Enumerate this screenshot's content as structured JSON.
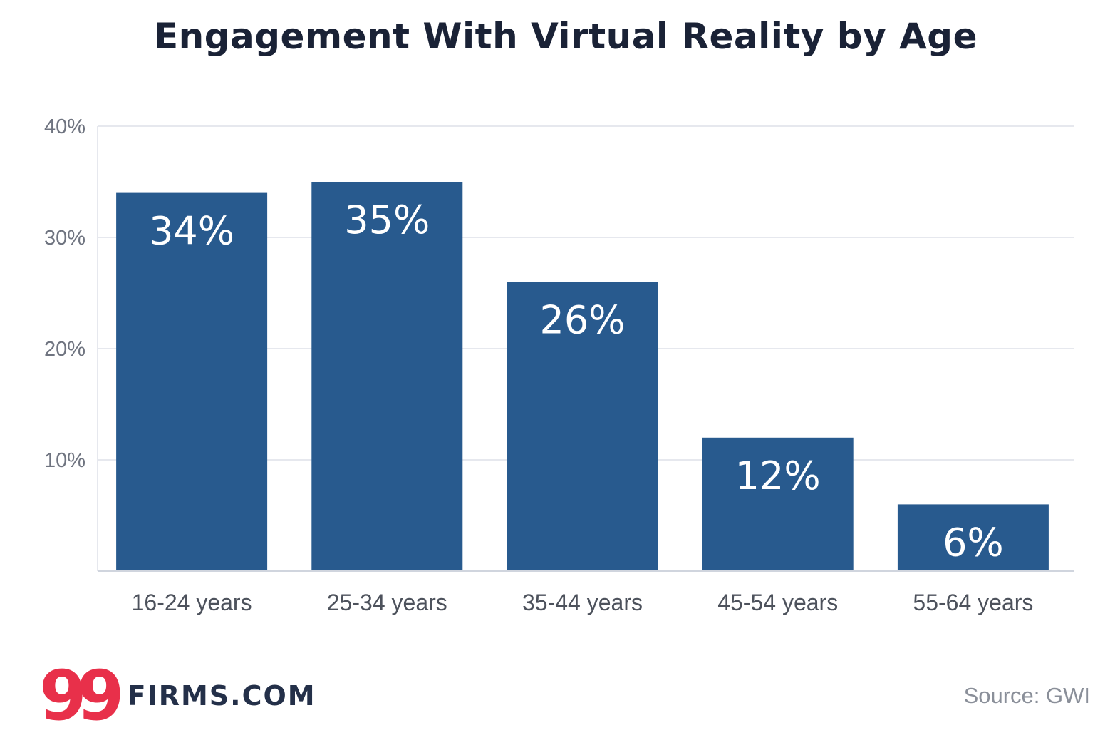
{
  "chart_data": {
    "type": "bar",
    "title": "Engagement With Virtual Reality by Age",
    "categories": [
      "16-24 years",
      "25-34 years",
      "35-44 years",
      "45-54 years",
      "55-64 years"
    ],
    "values": [
      34,
      35,
      26,
      12,
      6
    ],
    "value_labels": [
      "34%",
      "35%",
      "26%",
      "12%",
      "6%"
    ],
    "ylim": [
      0,
      40
    ],
    "yticks": [
      10,
      20,
      30,
      40
    ],
    "ytick_labels": [
      "10%",
      "20%",
      "30%",
      "40%"
    ],
    "xlabel": "",
    "ylabel": "",
    "grid": true,
    "bar_color": "#285a8e"
  },
  "footer": {
    "logo_mark": "99",
    "logo_text": "FIRMS.COM",
    "source": "Source: GWI"
  },
  "colors": {
    "title": "#1a2236",
    "logo_red": "#e8304a",
    "logo_navy": "#243049"
  }
}
